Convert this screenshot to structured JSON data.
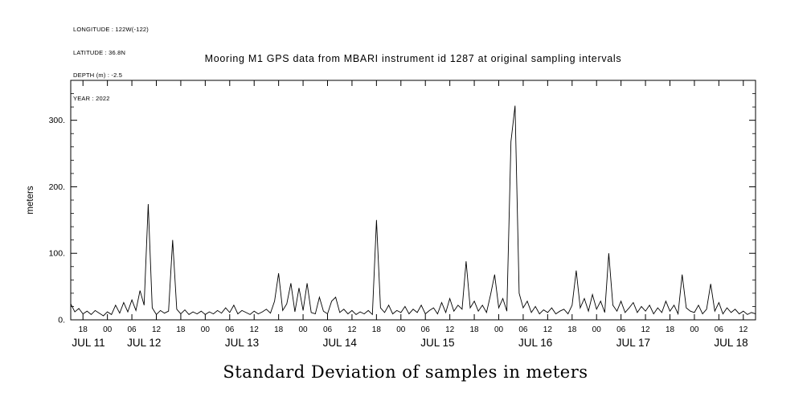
{
  "meta_block": {
    "lines": [
      "LONGITUDE : 122W(-122)",
      "LATITUDE : 36.8N",
      "DEPTH (m) : -2.5",
      "YEAR : 2022"
    ]
  },
  "title": "Mooring M1 GPS data from MBARI instrument id 1287 at original sampling intervals",
  "caption": "Standard Deviation of samples in meters",
  "colors": {
    "foreground": "#000000",
    "background": "#ffffff"
  },
  "chart_data": {
    "type": "line",
    "title": "Mooring M1 GPS data from MBARI instrument id 1287 at original sampling intervals",
    "xlabel": "Standard Deviation of samples in meters",
    "ylabel": "meters",
    "ylim": [
      0,
      360
    ],
    "y_major_ticks": [
      0,
      100,
      200,
      300
    ],
    "y_tick_labels": [
      "0.",
      "100.",
      "200.",
      "300."
    ],
    "y_minor_step": 20,
    "grid": "off",
    "legend": "none",
    "x_start": "2022-07-11 15:00",
    "x_total_hours": 168,
    "x_step_hours": 1,
    "x_first_tick_hour": 3,
    "x_tick_step_hours": 6,
    "x_tick_count": 28,
    "x_tick_labels": [
      "18",
      "00",
      "06",
      "12",
      "18",
      "00",
      "06",
      "12",
      "18",
      "00",
      "06",
      "12",
      "18",
      "00",
      "06",
      "12",
      "18",
      "00",
      "06",
      "12",
      "18",
      "00",
      "06",
      "12",
      "18",
      "00",
      "06",
      "12"
    ],
    "x_date_labels": [
      {
        "label": "JUL 11",
        "hour": -6
      },
      {
        "label": "JUL 12",
        "hour": 18
      },
      {
        "label": "JUL 13",
        "hour": 42
      },
      {
        "label": "JUL 14",
        "hour": 66
      },
      {
        "label": "JUL 15",
        "hour": 90
      },
      {
        "label": "JUL 16",
        "hour": 114
      },
      {
        "label": "JUL 17",
        "hour": 138
      },
      {
        "label": "JUL 18",
        "hour": 162
      }
    ],
    "values": [
      24,
      12,
      17,
      9,
      13,
      8,
      14,
      10,
      6,
      12,
      8,
      22,
      10,
      26,
      12,
      30,
      14,
      44,
      22,
      174,
      18,
      8,
      14,
      10,
      13,
      120,
      16,
      9,
      15,
      8,
      12,
      9,
      13,
      8,
      12,
      9,
      14,
      10,
      18,
      11,
      22,
      9,
      14,
      11,
      8,
      13,
      9,
      12,
      16,
      10,
      28,
      70,
      14,
      24,
      55,
      12,
      48,
      14,
      55,
      11,
      9,
      34,
      13,
      9,
      28,
      34,
      11,
      16,
      9,
      14,
      8,
      12,
      9,
      14,
      8,
      150,
      18,
      11,
      22,
      9,
      14,
      11,
      20,
      9,
      16,
      11,
      22,
      9,
      14,
      18,
      9,
      26,
      11,
      32,
      13,
      22,
      16,
      88,
      18,
      28,
      13,
      22,
      11,
      38,
      68,
      18,
      32,
      13,
      268,
      322,
      40,
      18,
      28,
      11,
      20,
      9,
      15,
      11,
      18,
      9,
      13,
      16,
      9,
      22,
      74,
      18,
      32,
      13,
      38,
      16,
      28,
      11,
      100,
      22,
      13,
      28,
      11,
      18,
      26,
      11,
      20,
      13,
      22,
      9,
      18,
      11,
      28,
      13,
      22,
      9,
      68,
      18,
      13,
      11,
      22,
      9,
      16,
      54,
      13,
      26,
      9,
      18,
      11,
      16,
      9,
      13,
      8,
      11,
      9
    ]
  }
}
